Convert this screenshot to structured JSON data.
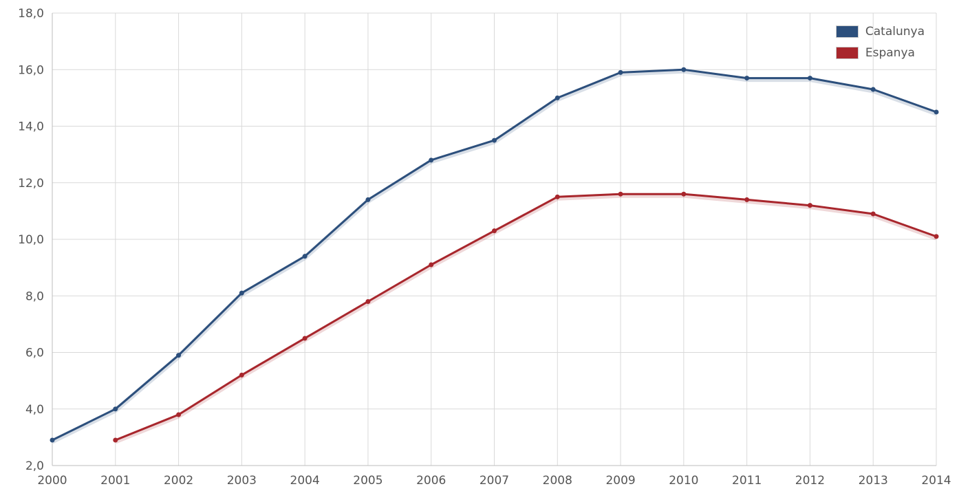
{
  "chart_data": {
    "type": "line",
    "x": [
      "2000",
      "2001",
      "2002",
      "2003",
      "2004",
      "2005",
      "2006",
      "2007",
      "2008",
      "2009",
      "2010",
      "2011",
      "2012",
      "2013",
      "2014"
    ],
    "y_ticks": [
      "2,0",
      "4,0",
      "6,0",
      "8,0",
      "10,0",
      "12,0",
      "14,0",
      "16,0",
      "18,0"
    ],
    "ylim": [
      2,
      18
    ],
    "grid": true,
    "legend_position": "top-right",
    "series": [
      {
        "name": "Catalunya",
        "color": "#2c4f7c",
        "values": [
          2.9,
          4.0,
          5.9,
          8.1,
          9.4,
          11.4,
          12.8,
          13.5,
          15.0,
          15.9,
          16.0,
          15.7,
          15.7,
          15.3,
          14.5
        ]
      },
      {
        "name": "Espanya",
        "color": "#a8262c",
        "values": [
          null,
          2.9,
          3.8,
          5.2,
          6.5,
          7.8,
          9.1,
          10.3,
          11.5,
          11.6,
          11.6,
          11.4,
          11.2,
          10.9,
          10.1
        ]
      }
    ]
  }
}
